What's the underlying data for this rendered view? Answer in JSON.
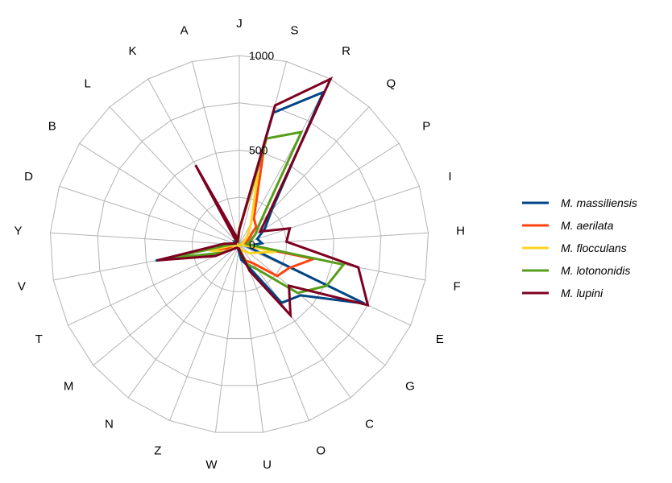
{
  "chart_data": {
    "type": "radar",
    "categories": [
      "J",
      "S",
      "R",
      "Q",
      "P",
      "I",
      "H",
      "F",
      "E",
      "G",
      "C",
      "O",
      "U",
      "W",
      "Z",
      "N",
      "M",
      "T",
      "V",
      "Y",
      "D",
      "B",
      "L",
      "K",
      "A"
    ],
    "rlim": [
      0,
      1000
    ],
    "ticks": [
      0,
      500,
      1000
    ],
    "tick_labels": [
      "0",
      "500",
      "1000"
    ],
    "grid": true,
    "legend_position": "right",
    "series": [
      {
        "name": "M. massiliensis",
        "color": "#004586",
        "values": [
          80,
          720,
          920,
          250,
          160,
          100,
          120,
          40,
          730,
          420,
          380,
          120,
          80,
          30,
          20,
          20,
          30,
          100,
          450,
          60,
          20,
          30,
          20,
          310,
          30
        ]
      },
      {
        "name": "M. aerilata",
        "color": "#ff420e",
        "values": [
          80,
          520,
          160,
          130,
          60,
          40,
          20,
          400,
          290,
          260,
          120,
          90,
          30,
          20,
          20,
          20,
          30,
          40,
          140,
          20,
          20,
          20,
          20,
          300,
          20
        ]
      },
      {
        "name": "M. flocculans",
        "color": "#ffd320",
        "values": [
          90,
          400,
          130,
          60,
          30,
          20,
          10,
          200,
          100,
          70,
          40,
          30,
          20,
          10,
          10,
          10,
          20,
          90,
          160,
          20,
          20,
          10,
          20,
          220,
          30
        ]
      },
      {
        "name": "M. lotononidis",
        "color": "#579d1c",
        "values": [
          80,
          580,
          680,
          160,
          100,
          60,
          40,
          560,
          510,
          400,
          160,
          110,
          30,
          20,
          20,
          20,
          30,
          100,
          390,
          40,
          20,
          20,
          20,
          330,
          20
        ]
      },
      {
        "name": "M. lupini",
        "color": "#7e0021",
        "values": [
          80,
          760,
          1000,
          230,
          130,
          280,
          250,
          640,
          750,
          340,
          460,
          150,
          40,
          20,
          20,
          20,
          30,
          140,
          440,
          80,
          20,
          20,
          20,
          480,
          30
        ]
      }
    ]
  }
}
